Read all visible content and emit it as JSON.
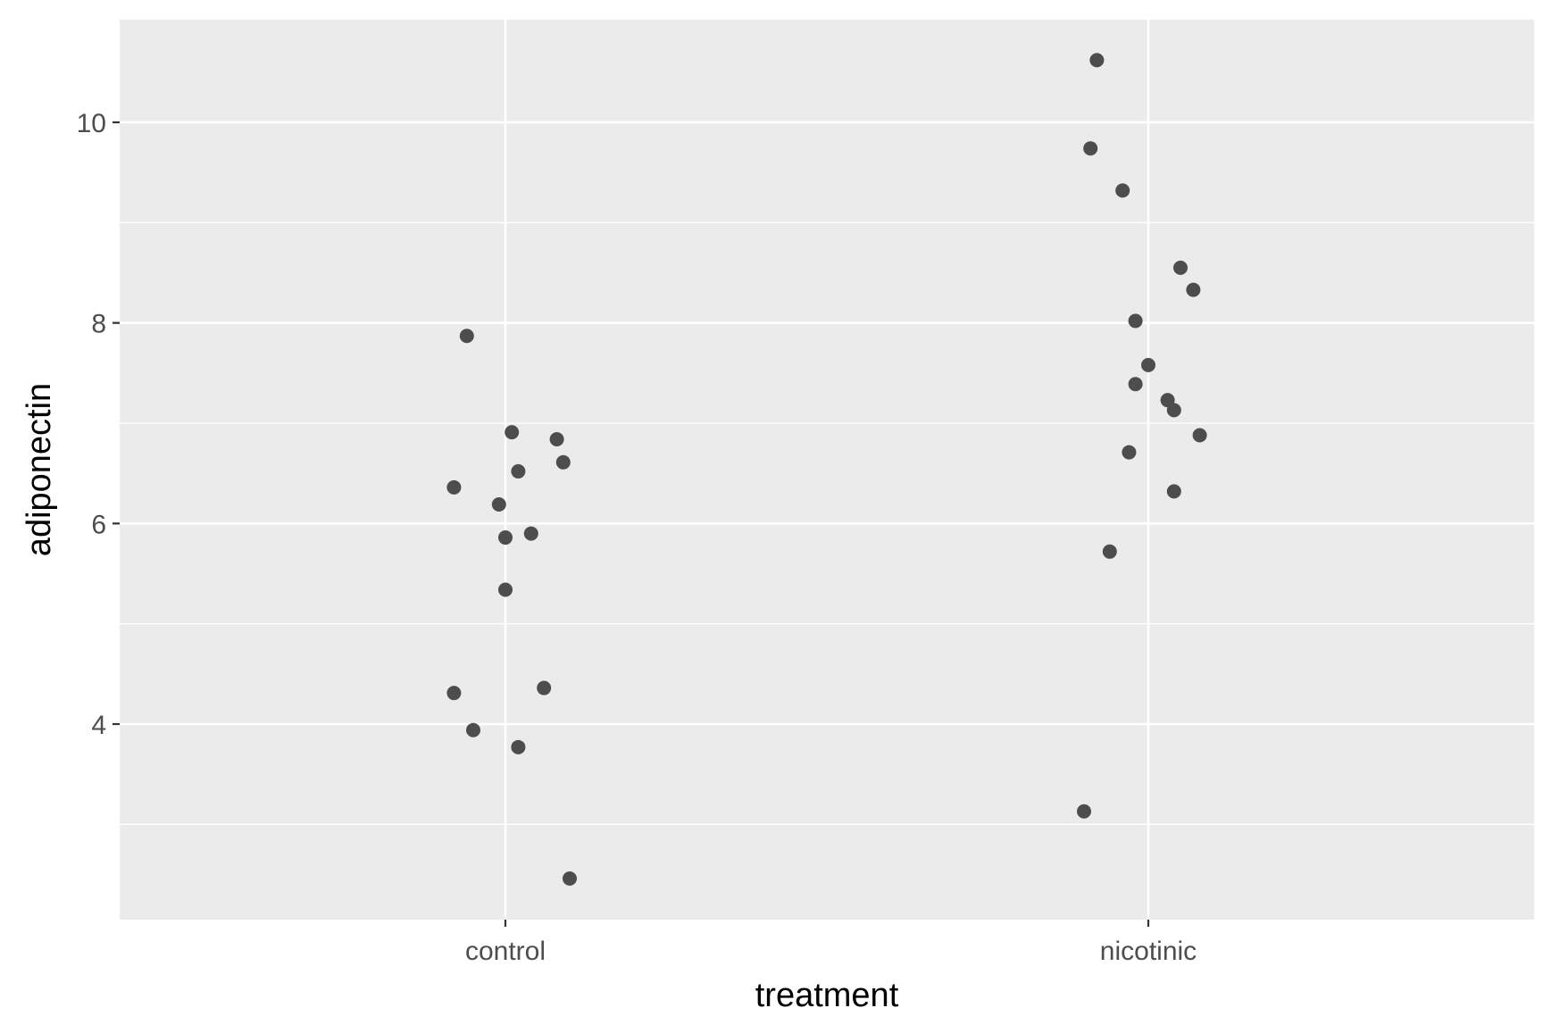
{
  "chart_data": {
    "type": "scatter",
    "title": "",
    "xlabel": "treatment",
    "ylabel": "adiponectin",
    "categories": [
      "control",
      "nicotinic"
    ],
    "ylim": [
      2.2,
      11.0
    ],
    "y_ticks": [
      {
        "value": 4,
        "label": "4"
      },
      {
        "value": 6,
        "label": "6"
      },
      {
        "value": 8,
        "label": "8"
      },
      {
        "value": 10,
        "label": "10"
      }
    ],
    "y_minor_gridlines": [
      3,
      5,
      7,
      9
    ],
    "grid": true,
    "jitter": true,
    "colors": {
      "panel_background": "#ebebeb",
      "gridline": "#ffffff",
      "point": "#4d4d4d",
      "axis_text": "#4d4d4d",
      "axis_title": "#000000"
    },
    "points": [
      {
        "category": "control",
        "jitter": -0.06,
        "y": 7.87
      },
      {
        "category": "control",
        "jitter": 0.01,
        "y": 6.91
      },
      {
        "category": "control",
        "jitter": 0.08,
        "y": 6.84
      },
      {
        "category": "control",
        "jitter": 0.09,
        "y": 6.61
      },
      {
        "category": "control",
        "jitter": 0.02,
        "y": 6.52
      },
      {
        "category": "control",
        "jitter": -0.08,
        "y": 6.36
      },
      {
        "category": "control",
        "jitter": -0.01,
        "y": 6.19
      },
      {
        "category": "control",
        "jitter": 0.04,
        "y": 5.9
      },
      {
        "category": "control",
        "jitter": 0.0,
        "y": 5.86
      },
      {
        "category": "control",
        "jitter": 0.0,
        "y": 5.34
      },
      {
        "category": "control",
        "jitter": 0.06,
        "y": 4.36
      },
      {
        "category": "control",
        "jitter": -0.08,
        "y": 4.31
      },
      {
        "category": "control",
        "jitter": -0.05,
        "y": 3.94
      },
      {
        "category": "control",
        "jitter": 0.02,
        "y": 3.77
      },
      {
        "category": "control",
        "jitter": 0.1,
        "y": 2.46
      },
      {
        "category": "nicotinic",
        "jitter": -0.08,
        "y": 10.62
      },
      {
        "category": "nicotinic",
        "jitter": -0.09,
        "y": 9.74
      },
      {
        "category": "nicotinic",
        "jitter": -0.04,
        "y": 9.32
      },
      {
        "category": "nicotinic",
        "jitter": 0.05,
        "y": 8.55
      },
      {
        "category": "nicotinic",
        "jitter": 0.07,
        "y": 8.33
      },
      {
        "category": "nicotinic",
        "jitter": -0.02,
        "y": 8.02
      },
      {
        "category": "nicotinic",
        "jitter": 0.0,
        "y": 7.58
      },
      {
        "category": "nicotinic",
        "jitter": -0.02,
        "y": 7.39
      },
      {
        "category": "nicotinic",
        "jitter": 0.03,
        "y": 7.23
      },
      {
        "category": "nicotinic",
        "jitter": 0.04,
        "y": 7.13
      },
      {
        "category": "nicotinic",
        "jitter": 0.08,
        "y": 6.88
      },
      {
        "category": "nicotinic",
        "jitter": -0.03,
        "y": 6.71
      },
      {
        "category": "nicotinic",
        "jitter": 0.04,
        "y": 6.32
      },
      {
        "category": "nicotinic",
        "jitter": -0.06,
        "y": 5.72
      },
      {
        "category": "nicotinic",
        "jitter": -0.1,
        "y": 3.13
      }
    ]
  }
}
